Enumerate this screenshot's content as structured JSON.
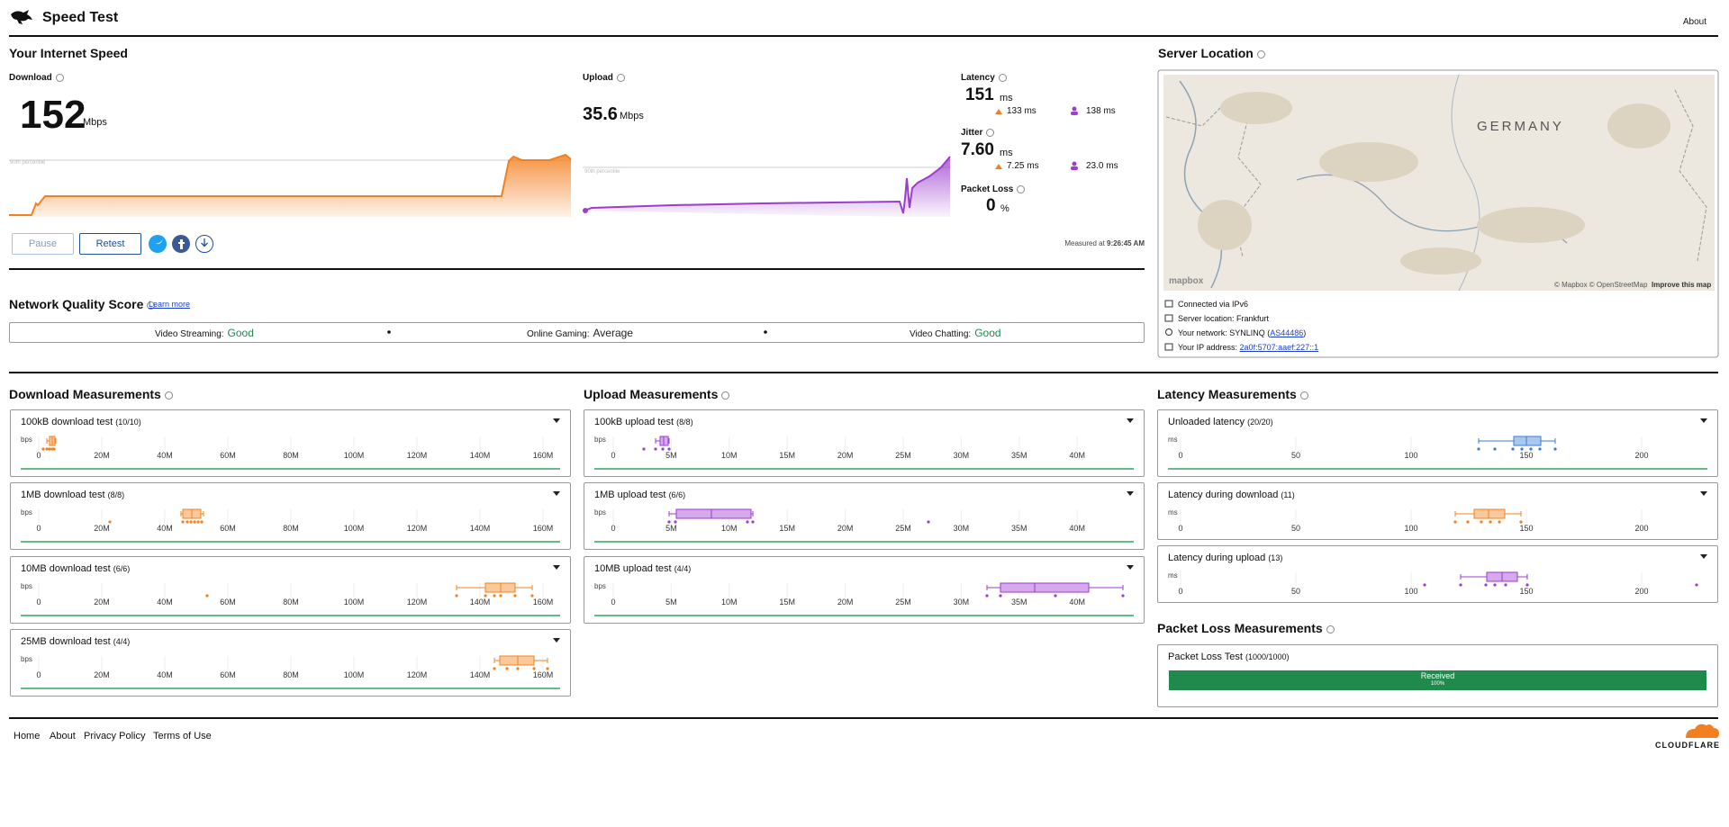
{
  "header": {
    "title": "Speed Test",
    "about": "About"
  },
  "speed": {
    "title": "Your Internet Speed",
    "download": {
      "label": "Download",
      "value": "152",
      "unit": "Mbps",
      "percentile": "90th percentile"
    },
    "upload": {
      "label": "Upload",
      "value": "35.6",
      "unit": "Mbps",
      "percentile": "90th percentile"
    },
    "latency": {
      "label": "Latency",
      "value": "151",
      "unit": "ms",
      "down": "133 ms",
      "up": "138 ms"
    },
    "jitter": {
      "label": "Jitter",
      "value": "7.60",
      "unit": "ms",
      "down": "7.25 ms",
      "up": "23.0 ms"
    },
    "packet_loss": {
      "label": "Packet Loss",
      "value": "0",
      "unit": "%"
    },
    "buttons": {
      "pause": "Pause",
      "retest": "Retest"
    },
    "measured": {
      "label": "Measured at",
      "time": "9:26:45 AM"
    }
  },
  "network_quality": {
    "title": "Network Quality Score",
    "learn_more": "Learn more",
    "items": [
      {
        "label": "Video Streaming:",
        "rating": "Good"
      },
      {
        "label": "Online Gaming:",
        "rating": "Average"
      },
      {
        "label": "Video Chatting:",
        "rating": "Good"
      }
    ]
  },
  "server": {
    "title": "Server Location",
    "map_label": "GERMANY",
    "mapbox": "mapbox",
    "credit": "© Mapbox © OpenStreetMap",
    "improve": "Improve this map",
    "info": [
      {
        "prefix": "Connected via IPv6"
      },
      {
        "prefix": "Server location: Frankfurt"
      },
      {
        "prefix": "Your network: SYNLINQ (",
        "link": "AS44486",
        "suffix": ")"
      },
      {
        "prefix": "Your IP address: ",
        "link": "2a0f:5707:aaef:227::1"
      }
    ]
  },
  "download_measurements": {
    "title": "Download Measurements",
    "unit": "bps",
    "ticks": [
      "0",
      "20M",
      "40M",
      "60M",
      "80M",
      "100M",
      "120M",
      "140M",
      "160M"
    ],
    "tests": [
      {
        "name": "100kB download test",
        "count": "(10/10)"
      },
      {
        "name": "1MB download test",
        "count": "(8/8)"
      },
      {
        "name": "10MB download test",
        "count": "(6/6)"
      },
      {
        "name": "25MB download test",
        "count": "(4/4)"
      }
    ]
  },
  "upload_measurements": {
    "title": "Upload Measurements",
    "unit": "bps",
    "ticks": [
      "0",
      "5M",
      "10M",
      "15M",
      "20M",
      "25M",
      "30M",
      "35M",
      "40M"
    ],
    "tests": [
      {
        "name": "100kB upload test",
        "count": "(8/8)"
      },
      {
        "name": "1MB upload test",
        "count": "(6/6)"
      },
      {
        "name": "10MB upload test",
        "count": "(4/4)"
      }
    ]
  },
  "latency_measurements": {
    "title": "Latency Measurements",
    "unit": "ms",
    "ticks": [
      "0",
      "50",
      "100",
      "150",
      "200"
    ],
    "tests": [
      {
        "name": "Unloaded latency",
        "count": "(20/20)"
      },
      {
        "name": "Latency during download",
        "count": "(11)"
      },
      {
        "name": "Latency during upload",
        "count": "(13)"
      }
    ]
  },
  "packet_loss_measurements": {
    "title": "Packet Loss Measurements",
    "test": {
      "name": "Packet Loss Test",
      "count": "(1000/1000)"
    },
    "bar_label": "Received",
    "bar_value": "100%"
  },
  "footer": {
    "links": [
      "Home",
      "About",
      "Privacy Policy",
      "Terms of Use"
    ],
    "logo": "CLOUDFLARE"
  }
}
